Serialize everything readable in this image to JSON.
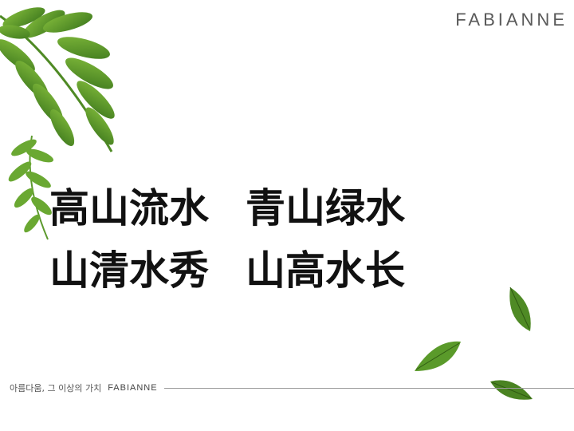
{
  "logo": {
    "text": "FABIANNE"
  },
  "phrases": {
    "row1": [
      "高山流水",
      "青山绿水"
    ],
    "row2": [
      "山清水秀",
      "山高水长"
    ]
  },
  "footer": {
    "korean_text": "아름다움, 그 이상의 가치",
    "brand": "FABIANNE"
  },
  "colors": {
    "leaf_dark": "#3f7a1e",
    "leaf_light": "#7fb83a",
    "text": "#111111",
    "logo": "#5a5a5a"
  },
  "icons": [
    "fern-branch-icon",
    "leaf-icon"
  ]
}
